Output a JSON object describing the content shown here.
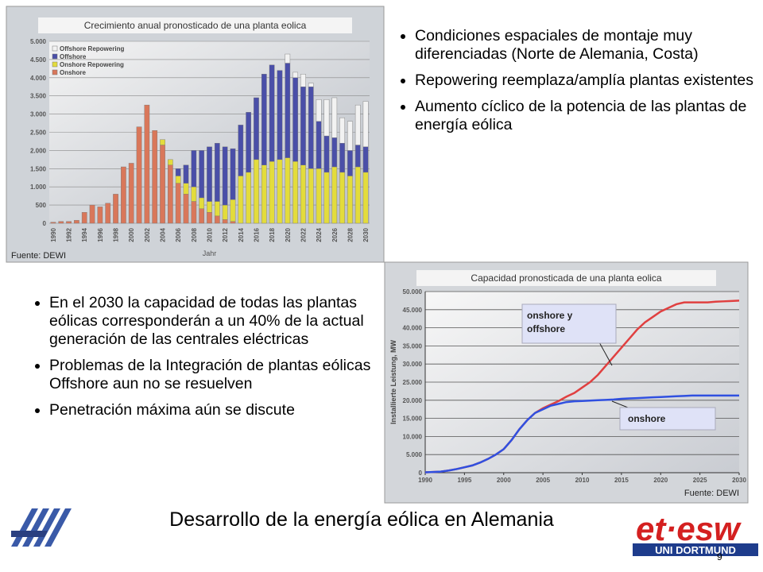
{
  "chart_data": [
    {
      "type": "stacked_bar",
      "title": "Crecimiento anual pronosticado de una planta eolica",
      "x_label": "Jahr",
      "source": "Fuente: DEWI",
      "categories": [
        "1990",
        null,
        "1992",
        null,
        "1994",
        null,
        "1996",
        null,
        "1998",
        null,
        "2000",
        null,
        "2002",
        null,
        "2004",
        null,
        "2006",
        null,
        "2008",
        null,
        "2010",
        null,
        "2012",
        null,
        "2014",
        null,
        "2016",
        null,
        "2018",
        null,
        "2020",
        null,
        "2022",
        null,
        "2024",
        null,
        "2026",
        null,
        "2028",
        null,
        "2030"
      ],
      "series": [
        {
          "name": "Onshore",
          "color": "#d9775a",
          "values": [
            30,
            50,
            50,
            80,
            300,
            500,
            450,
            550,
            800,
            1550,
            1650,
            2650,
            3250,
            2550,
            2150,
            1600,
            1100,
            800,
            600,
            400,
            300,
            200,
            100,
            50,
            0,
            0,
            0,
            0,
            0,
            0,
            0,
            0,
            0,
            0,
            0,
            0,
            0,
            0,
            0,
            0,
            0
          ]
        },
        {
          "name": "Onshore Repowering",
          "color": "#e3dc3c",
          "values": [
            0,
            0,
            0,
            0,
            0,
            0,
            0,
            0,
            0,
            0,
            0,
            0,
            0,
            0,
            150,
            150,
            200,
            300,
            400,
            300,
            300,
            400,
            400,
            600,
            1300,
            1400,
            1750,
            1600,
            1700,
            1750,
            1800,
            1700,
            1600,
            1500,
            1500,
            1400,
            1550,
            1400,
            1300,
            1550,
            1400
          ]
        },
        {
          "name": "Offshore",
          "color": "#4a4fa8",
          "values": [
            0,
            0,
            0,
            0,
            0,
            0,
            0,
            0,
            0,
            0,
            0,
            0,
            0,
            0,
            0,
            0,
            200,
            500,
            1000,
            1300,
            1500,
            1600,
            1600,
            1400,
            1400,
            1650,
            1700,
            2500,
            2650,
            2450,
            2600,
            2300,
            2150,
            2250,
            1300,
            1000,
            800,
            800,
            700,
            600,
            700
          ]
        },
        {
          "name": "Offshore Repowering",
          "color": "#f2f2f2",
          "values": [
            0,
            0,
            0,
            0,
            0,
            0,
            0,
            0,
            0,
            0,
            0,
            0,
            0,
            0,
            0,
            0,
            0,
            0,
            0,
            0,
            0,
            0,
            0,
            0,
            0,
            0,
            0,
            0,
            0,
            0,
            250,
            150,
            350,
            100,
            600,
            1000,
            1100,
            700,
            800,
            1100,
            1250
          ]
        }
      ],
      "ylim": [
        0,
        5000
      ],
      "yticks": [
        0,
        {
          "value": 500,
          "label": "500"
        },
        {
          "value": 1000,
          "label": "1.000"
        },
        {
          "value": 1500,
          "label": "1.500"
        },
        {
          "value": 2000,
          "label": "2.000"
        },
        {
          "value": 2500,
          "label": "2.500"
        },
        {
          "value": 3000,
          "label": "3.000"
        },
        {
          "value": 3500,
          "label": "3.500"
        },
        {
          "value": 4000,
          "label": "4.000"
        },
        {
          "value": 4500,
          "label": "4.500"
        },
        {
          "value": 5000,
          "label": "5.000"
        }
      ],
      "grid": true,
      "legend": "top-left"
    },
    {
      "type": "line",
      "title": "Capacidad pronosticada de una planta eolica",
      "y_label": "Installierte Leistung, MW",
      "source": "Fuente: DEWI",
      "x": [
        1990,
        1991,
        1992,
        1993,
        1994,
        1995,
        1996,
        1997,
        1998,
        1999,
        2000,
        2001,
        2002,
        2003,
        2004,
        2005,
        2006,
        2007,
        2008,
        2009,
        2010,
        2011,
        2012,
        2013,
        2014,
        2015,
        2016,
        2017,
        2018,
        2019,
        2020,
        2021,
        2022,
        2023,
        2024,
        2025,
        2026,
        2027,
        2028,
        2029,
        2030
      ],
      "series": [
        {
          "name": "onshore y offshore",
          "color": "#e04040",
          "values": [
            100,
            200,
            300,
            600,
            1000,
            1500,
            2000,
            2800,
            3800,
            5000,
            6500,
            9000,
            12000,
            14500,
            16500,
            17800,
            18800,
            19800,
            21000,
            22000,
            23500,
            25000,
            27000,
            29500,
            32000,
            34500,
            37000,
            39500,
            41500,
            43000,
            44500,
            45500,
            46500,
            47000,
            47000,
            47000,
            47000,
            47200,
            47300,
            47400,
            47500
          ]
        },
        {
          "name": "onshore",
          "color": "#3050e0",
          "values": [
            100,
            200,
            300,
            600,
            1000,
            1500,
            2000,
            2800,
            3800,
            5000,
            6500,
            9000,
            12000,
            14500,
            16500,
            17500,
            18500,
            19000,
            19500,
            19700,
            19800,
            19900,
            20000,
            20100,
            20200,
            20400,
            20500,
            20600,
            20700,
            20800,
            20900,
            21000,
            21100,
            21200,
            21300,
            21300,
            21300,
            21300,
            21300,
            21300,
            21300
          ]
        }
      ],
      "xlim": [
        1990,
        2030
      ],
      "xticks": [
        1990,
        1995,
        2000,
        2005,
        2010,
        2015,
        2020,
        2025,
        2030
      ],
      "ylim": [
        0,
        50000
      ],
      "yticks": [
        0,
        {
          "value": 5000,
          "label": "5.000"
        },
        {
          "value": 10000,
          "label": "10.000"
        },
        {
          "value": 15000,
          "label": "15.000"
        },
        {
          "value": 20000,
          "label": "20.000"
        },
        {
          "value": 25000,
          "label": "25.000"
        },
        {
          "value": 30000,
          "label": "30.000"
        },
        {
          "value": 35000,
          "label": "35.000"
        },
        {
          "value": 40000,
          "label": "40.000"
        },
        {
          "value": 45000,
          "label": "45.000"
        },
        {
          "value": 50000,
          "label": "50.000"
        }
      ],
      "grid": true
    }
  ],
  "slide": {
    "bullets_top": [
      "Condiciones espaciales de montaje muy diferenciadas (Norte de Alemania, Costa)",
      "Repowering reemplaza/amplía plantas existentes",
      "Aumento cíclico de la potencia de las plantas de energía eólica"
    ],
    "bullets_bottom": [
      "En el 2030 la capacidad de todas las plantas eólicas corresponderán a un 40% de la actual generación de las centrales eléctricas",
      "Problemas de la Integración de plantas eólicas Offshore aun no se resuelven",
      "Penetración máxima aún se discute"
    ],
    "title": "Desarrollo de la energía eólica en Alemania",
    "page": "9",
    "logo": {
      "main": "et·esw",
      "sub": "UNI DORTMUND"
    }
  }
}
